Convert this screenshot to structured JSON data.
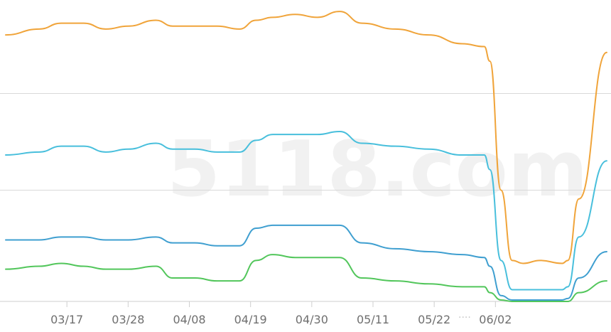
{
  "chart_data": {
    "type": "line",
    "title": "",
    "xlabel": "",
    "ylabel": "",
    "x_ticks": [
      "03/17",
      "03/28",
      "04/08",
      "04/19",
      "04/30",
      "05/11",
      "05/22",
      "06/02"
    ],
    "x_range": [
      "03/06",
      "06/06"
    ],
    "y_range": [
      0,
      100
    ],
    "grid": "horizontal",
    "legend": "none",
    "series": [
      {
        "color": "#f0a43a",
        "values": [
          [
            0,
            91
          ],
          [
            6,
            93
          ],
          [
            10,
            95
          ],
          [
            14,
            95
          ],
          [
            18,
            93
          ],
          [
            22,
            94
          ],
          [
            27,
            96
          ],
          [
            30,
            94
          ],
          [
            34,
            94
          ],
          [
            38,
            94
          ],
          [
            42,
            93
          ],
          [
            45,
            96
          ],
          [
            48,
            97
          ],
          [
            52,
            98
          ],
          [
            56,
            97
          ],
          [
            60,
            99
          ],
          [
            64,
            95
          ],
          [
            70,
            93
          ],
          [
            76,
            91
          ],
          [
            82,
            88
          ],
          [
            86,
            87
          ],
          [
            87,
            82
          ],
          [
            89,
            38
          ],
          [
            91,
            14
          ],
          [
            93,
            13
          ],
          [
            96,
            14
          ],
          [
            100,
            13
          ],
          [
            101,
            14
          ],
          [
            103,
            35
          ],
          [
            108,
            85
          ]
        ]
      },
      {
        "color": "#48bfdc",
        "values": [
          [
            0,
            50
          ],
          [
            6,
            51
          ],
          [
            10,
            53
          ],
          [
            14,
            53
          ],
          [
            18,
            51
          ],
          [
            22,
            52
          ],
          [
            27,
            54
          ],
          [
            30,
            52
          ],
          [
            34,
            52
          ],
          [
            38,
            51
          ],
          [
            42,
            51
          ],
          [
            45,
            55
          ],
          [
            48,
            57
          ],
          [
            52,
            57
          ],
          [
            56,
            57
          ],
          [
            60,
            58
          ],
          [
            64,
            54
          ],
          [
            70,
            53
          ],
          [
            76,
            52
          ],
          [
            82,
            50
          ],
          [
            86,
            50
          ],
          [
            87,
            45
          ],
          [
            89,
            14
          ],
          [
            91,
            4
          ],
          [
            93,
            4
          ],
          [
            96,
            4
          ],
          [
            100,
            4
          ],
          [
            101,
            5
          ],
          [
            103,
            22
          ],
          [
            108,
            48
          ]
        ]
      },
      {
        "color": "#3f9fd0",
        "values": [
          [
            0,
            21
          ],
          [
            6,
            21
          ],
          [
            10,
            22
          ],
          [
            14,
            22
          ],
          [
            18,
            21
          ],
          [
            22,
            21
          ],
          [
            27,
            22
          ],
          [
            30,
            20
          ],
          [
            34,
            20
          ],
          [
            38,
            19
          ],
          [
            42,
            19
          ],
          [
            45,
            25
          ],
          [
            48,
            26
          ],
          [
            52,
            26
          ],
          [
            56,
            26
          ],
          [
            60,
            26
          ],
          [
            64,
            20
          ],
          [
            70,
            18
          ],
          [
            76,
            17
          ],
          [
            82,
            16
          ],
          [
            86,
            15
          ],
          [
            87,
            12
          ],
          [
            89,
            2
          ],
          [
            91,
            0.5
          ],
          [
            93,
            0.5
          ],
          [
            96,
            0.5
          ],
          [
            100,
            0.5
          ],
          [
            101,
            1
          ],
          [
            103,
            8
          ],
          [
            108,
            17
          ]
        ]
      },
      {
        "color": "#52c65b",
        "values": [
          [
            0,
            11
          ],
          [
            6,
            12
          ],
          [
            10,
            13
          ],
          [
            14,
            12
          ],
          [
            18,
            11
          ],
          [
            22,
            11
          ],
          [
            27,
            12
          ],
          [
            30,
            8
          ],
          [
            34,
            8
          ],
          [
            38,
            7
          ],
          [
            42,
            7
          ],
          [
            45,
            14
          ],
          [
            48,
            16
          ],
          [
            52,
            15
          ],
          [
            56,
            15
          ],
          [
            60,
            15
          ],
          [
            64,
            8
          ],
          [
            70,
            7
          ],
          [
            76,
            6
          ],
          [
            82,
            5
          ],
          [
            86,
            5
          ],
          [
            87,
            3
          ],
          [
            89,
            0.5
          ],
          [
            91,
            0
          ],
          [
            93,
            0
          ],
          [
            96,
            0
          ],
          [
            100,
            0
          ],
          [
            101,
            0
          ],
          [
            103,
            3
          ],
          [
            108,
            7
          ]
        ]
      }
    ]
  },
  "watermark_text": "5118.com",
  "overlay_text": "····"
}
